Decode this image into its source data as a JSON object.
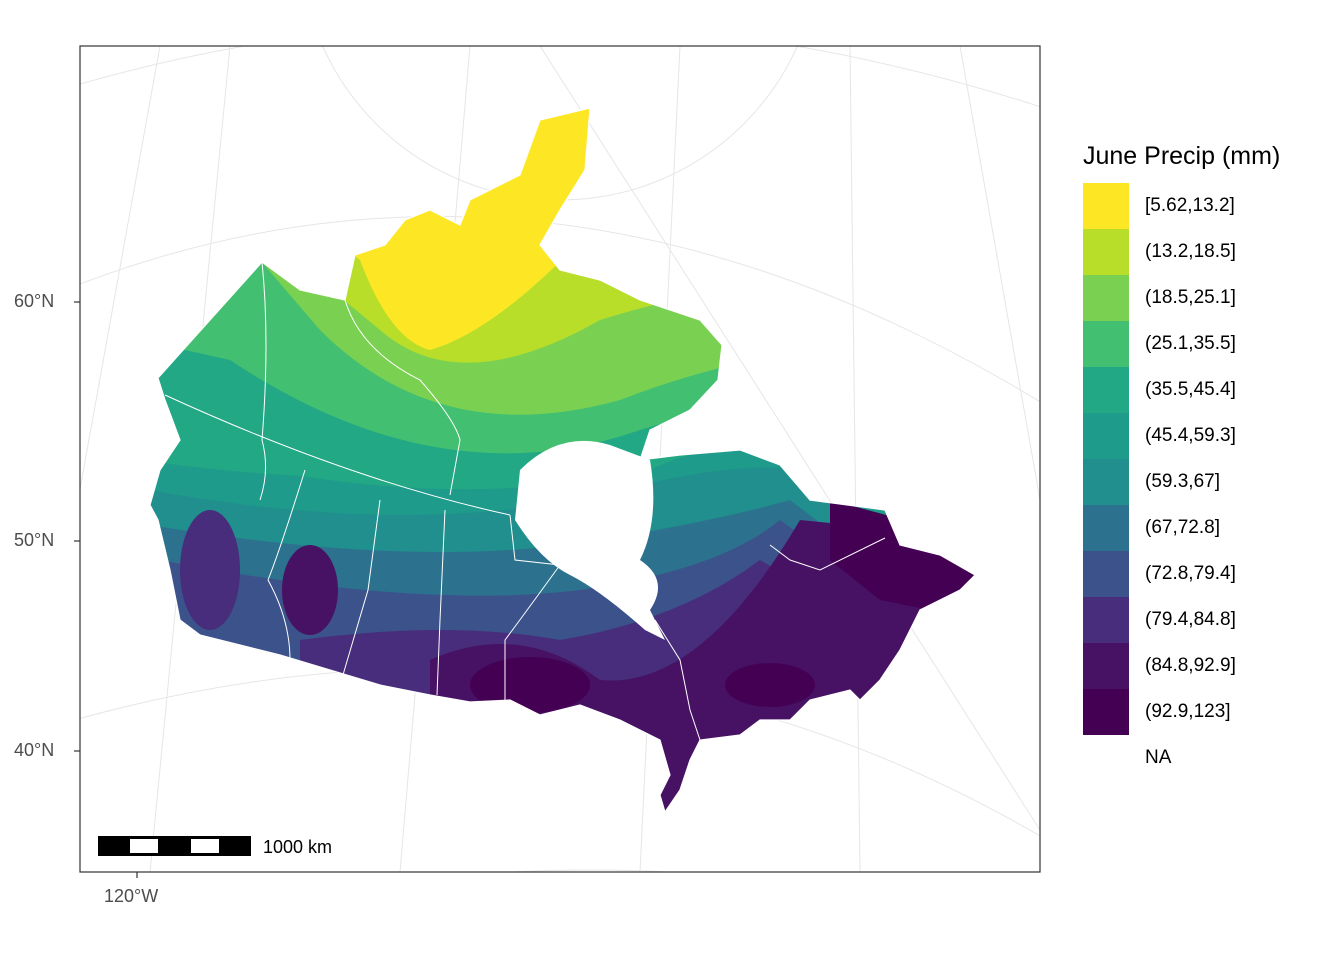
{
  "map": {
    "axes": {
      "lat_ticks": [
        "60°N",
        "50°N",
        "40°N"
      ],
      "lon_ticks": [
        "120°W"
      ]
    },
    "legend": {
      "title": "June Precip (mm)",
      "items": [
        {
          "label": "[5.62,13.2]",
          "color": "#FDE725"
        },
        {
          "label": "(13.2,18.5]",
          "color": "#B8DE29"
        },
        {
          "label": "(18.5,25.1]",
          "color": "#7AD151"
        },
        {
          "label": "(25.1,35.5]",
          "color": "#43BF71"
        },
        {
          "label": "(35.5,45.4]",
          "color": "#22A884"
        },
        {
          "label": "(45.4,59.3]",
          "color": "#1E9B8A"
        },
        {
          "label": "(59.3,67]",
          "color": "#218F8D"
        },
        {
          "label": "(67,72.8]",
          "color": "#2C728E"
        },
        {
          "label": "(72.8,79.4]",
          "color": "#3B528B"
        },
        {
          "label": "(79.4,84.8]",
          "color": "#472D7B"
        },
        {
          "label": "(84.8,92.9]",
          "color": "#471164"
        },
        {
          "label": "(92.9,123]",
          "color": "#440154"
        }
      ],
      "na_label": "NA"
    },
    "scalebar": {
      "label": "1000 km"
    }
  }
}
